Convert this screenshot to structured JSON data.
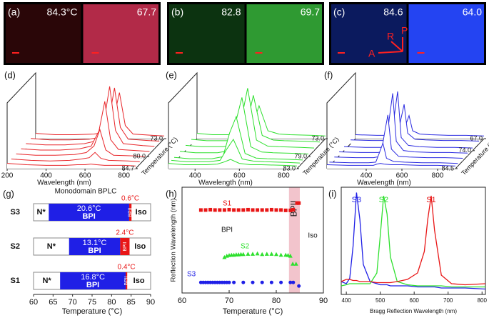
{
  "images": [
    {
      "label": "(a)",
      "left": "84.3°C",
      "right": "67.7",
      "dark": "#2a0608",
      "light": "#b22a48"
    },
    {
      "label": "(b)",
      "left": "82.8",
      "right": "69.7",
      "dark": "#0c3310",
      "light": "#2f9a32"
    },
    {
      "label": "(c)",
      "left": "84.6",
      "right": "64.0",
      "dark": "#0b1a5e",
      "light": "#2444f2",
      "axes": [
        "R",
        "P",
        "A"
      ]
    }
  ],
  "chart_data": [
    {
      "type": "waterfall",
      "label": "(d)",
      "xlabel": "Wavelength (nm)",
      "zlabel": "Temperature (°C)",
      "color": "#e8262a",
      "x": [
        200,
        300,
        400,
        500,
        560,
        600,
        630,
        660,
        700,
        800,
        860
      ],
      "xlim": [
        200,
        860
      ],
      "xticks": [
        200,
        400,
        600,
        800
      ],
      "ylim": [
        0,
        100
      ],
      "zlim": [
        84.7,
        73
      ],
      "zticks": [
        {
          "value": 73,
          "label": "73.0"
        },
        {
          "value": 80,
          "label": "80.0"
        },
        84.7
      ],
      "series": [
        {
          "z": 73,
          "values": [
            8,
            6,
            6,
            7,
            10,
            30,
            70,
            20,
            7,
            5,
            4
          ]
        },
        {
          "z": 75,
          "values": [
            8,
            6,
            6,
            7,
            10,
            35,
            85,
            25,
            7,
            5,
            4
          ]
        },
        {
          "z": 77,
          "values": [
            8,
            6,
            6,
            8,
            12,
            40,
            95,
            28,
            8,
            5,
            4
          ]
        },
        {
          "z": 79,
          "values": [
            8,
            6,
            6,
            8,
            12,
            35,
            80,
            22,
            7,
            5,
            4
          ]
        },
        {
          "z": 81,
          "values": [
            8,
            6,
            6,
            7,
            10,
            20,
            45,
            14,
            6,
            5,
            4
          ]
        },
        {
          "z": 83,
          "values": [
            8,
            6,
            5,
            6,
            8,
            10,
            18,
            9,
            6,
            5,
            4
          ]
        },
        {
          "z": 84.7,
          "values": [
            8,
            6,
            5,
            5,
            6,
            6,
            7,
            6,
            5,
            5,
            4
          ]
        }
      ]
    },
    {
      "type": "waterfall",
      "label": "(e)",
      "xlabel": "Wavelength (nm)",
      "zlabel": "Temperature (°C)",
      "color": "#2ee02e",
      "x": [
        280,
        350,
        400,
        450,
        500,
        530,
        560,
        600,
        650,
        700,
        800,
        860
      ],
      "xlim": [
        280,
        860
      ],
      "xticks": [
        400,
        600,
        800
      ],
      "ylim": [
        0,
        100
      ],
      "zlim": [
        83,
        73
      ],
      "zticks": [
        {
          "value": 73,
          "label": "73.0"
        },
        {
          "value": 79,
          "label": "79.0"
        },
        {
          "value": 83,
          "label": "83.0"
        }
      ],
      "series": [
        {
          "z": 73,
          "values": [
            8,
            6,
            6,
            6,
            8,
            20,
            50,
            12,
            7,
            6,
            5,
            4
          ]
        },
        {
          "z": 75,
          "values": [
            8,
            6,
            6,
            6,
            8,
            30,
            75,
            14,
            7,
            6,
            5,
            4
          ]
        },
        {
          "z": 77,
          "values": [
            8,
            6,
            6,
            6,
            9,
            45,
            95,
            16,
            7,
            6,
            5,
            4
          ]
        },
        {
          "z": 79,
          "values": [
            8,
            6,
            6,
            6,
            9,
            50,
            90,
            15,
            7,
            6,
            5,
            4
          ]
        },
        {
          "z": 81,
          "values": [
            8,
            6,
            6,
            6,
            9,
            45,
            70,
            14,
            7,
            6,
            5,
            4
          ]
        },
        {
          "z": 82,
          "values": [
            8,
            6,
            6,
            6,
            8,
            25,
            40,
            10,
            7,
            6,
            5,
            4
          ]
        },
        {
          "z": 83,
          "values": [
            8,
            6,
            6,
            6,
            7,
            10,
            14,
            8,
            6,
            6,
            5,
            4
          ]
        }
      ]
    },
    {
      "type": "waterfall",
      "label": "(f)",
      "xlabel": "Wavelength (nm)",
      "zlabel": "Temperature (°C)",
      "color": "#2a2ae0",
      "x": [
        180,
        300,
        400,
        440,
        460,
        480,
        500,
        540,
        600,
        700,
        800,
        900
      ],
      "xlim": [
        180,
        900
      ],
      "xticks": [
        400,
        600,
        800
      ],
      "ylim": [
        0,
        100
      ],
      "zlim": [
        84.5,
        67
      ],
      "zticks": [
        {
          "value": 67,
          "label": "67.0"
        },
        {
          "value": 74,
          "label": "74.0"
        },
        84.5
      ],
      "series": [
        {
          "z": 67,
          "values": [
            6,
            5,
            5,
            6,
            20,
            35,
            12,
            7,
            6,
            5,
            5,
            4
          ]
        },
        {
          "z": 70,
          "values": [
            6,
            5,
            5,
            7,
            35,
            60,
            16,
            7,
            6,
            5,
            5,
            4
          ]
        },
        {
          "z": 74,
          "values": [
            6,
            5,
            5,
            8,
            50,
            90,
            20,
            8,
            6,
            5,
            5,
            4
          ]
        },
        {
          "z": 77,
          "values": [
            6,
            5,
            5,
            8,
            55,
            95,
            22,
            8,
            6,
            5,
            5,
            4
          ]
        },
        {
          "z": 80,
          "values": [
            6,
            5,
            5,
            7,
            40,
            70,
            18,
            7,
            6,
            5,
            5,
            4
          ]
        },
        {
          "z": 83,
          "values": [
            6,
            5,
            5,
            6,
            20,
            35,
            12,
            7,
            6,
            5,
            5,
            4
          ]
        },
        {
          "z": 84.5,
          "values": [
            6,
            5,
            5,
            5,
            7,
            8,
            7,
            6,
            6,
            5,
            5,
            4
          ]
        }
      ]
    },
    {
      "type": "phase",
      "label": "(g)",
      "title": "Monodomain BPLC",
      "xlabel": "Temperature (°C)",
      "xlim": [
        60,
        90
      ],
      "xticks": [
        60,
        65,
        70,
        75,
        80,
        85,
        90
      ],
      "categories": [
        "S3",
        "S2",
        "S1"
      ],
      "regions": [
        "N*",
        "Iso"
      ],
      "starts": [
        63.9,
        69.1,
        66.8
      ],
      "series": [
        {
          "name": "BPI",
          "color": "#1f1fe6",
          "values": [
            20.6,
            13.1,
            16.8
          ],
          "value_labels": [
            "20.6°C",
            "13.1°C",
            "16.8°C"
          ]
        },
        {
          "name": "BPII",
          "color": "#e81616",
          "values": [
            0.6,
            2.4,
            0.4
          ],
          "value_labels": [
            "0.6°C",
            "2.4°C",
            "0.4°C"
          ]
        }
      ]
    },
    {
      "type": "scatter",
      "label": "(h)",
      "xlabel": "Temperature (°C)",
      "ylabel": "Reflection Wavelength (nm)",
      "xlim": [
        60,
        90
      ],
      "xticks": [
        60,
        70,
        80,
        90
      ],
      "ylim": [
        400,
        720
      ],
      "region": {
        "xrange": [
          82.7,
          85
        ],
        "label": "BPII",
        "color": "#f2c4cc"
      },
      "annotations": [
        "BPI",
        "Iso"
      ],
      "series": [
        {
          "name": "S1",
          "color": "#e81616",
          "marker": "square",
          "x": [
            64,
            65,
            66,
            67,
            68,
            69,
            70,
            71,
            72,
            73,
            74,
            75,
            76,
            77,
            78,
            79,
            80,
            81,
            82,
            83,
            83.6,
            84.4,
            84.8
          ],
          "values": [
            651,
            651,
            652,
            651,
            651,
            651,
            652,
            651,
            651,
            651,
            652,
            651,
            651,
            651,
            651,
            652,
            651,
            651,
            650,
            650,
            652,
            672,
            672
          ]
        },
        {
          "name": "S2",
          "color": "#2ee02e",
          "marker": "triangle",
          "x": [
            69,
            69.5,
            70,
            70.5,
            71,
            71.5,
            72,
            72.5,
            73,
            74,
            75,
            76,
            77,
            78,
            79,
            80,
            81,
            82,
            82.5,
            83,
            83.5,
            84.2
          ],
          "values": [
            508,
            512,
            514,
            515,
            515,
            516,
            516,
            517,
            517,
            518,
            518,
            519,
            517,
            518,
            518,
            517,
            515,
            515,
            514,
            512,
            488,
            488
          ]
        },
        {
          "name": "S3",
          "color": "#1f1fe6",
          "marker": "circle",
          "x": [
            64,
            64.5,
            65,
            65.5,
            66,
            66.5,
            67,
            67.5,
            68,
            68.5,
            69,
            69.5,
            70,
            71,
            73,
            75,
            77,
            79,
            81,
            83,
            83.6,
            84.8
          ],
          "values": [
            432,
            432,
            432,
            432,
            432,
            432,
            432,
            432,
            432,
            432,
            432,
            432,
            432,
            432,
            432,
            432,
            432,
            432,
            432,
            432,
            432,
            421
          ]
        }
      ]
    },
    {
      "type": "line",
      "label": "(i)",
      "xlabel": "Bragg Reflection Wavelength (nm)",
      "x": [
        385,
        400,
        410,
        420,
        430,
        440,
        450,
        470,
        490,
        500,
        510,
        520,
        530,
        550,
        580,
        610,
        630,
        640,
        650,
        660,
        680,
        710,
        750,
        810
      ],
      "xlim": [
        385,
        810
      ],
      "xticks": [
        400,
        500,
        600,
        700,
        800
      ],
      "ylim": [
        0,
        100
      ],
      "series": [
        {
          "name": "S3",
          "color": "#1f1fe6",
          "values": [
            12,
            10,
            15,
            45,
            95,
            70,
            28,
            12,
            10,
            9,
            9,
            9,
            8,
            8,
            8,
            7,
            7,
            7,
            7,
            7,
            6,
            6,
            6,
            5
          ]
        },
        {
          "name": "S2",
          "color": "#2ee02e",
          "values": [
            8,
            9,
            10,
            10,
            10,
            10,
            10,
            10,
            20,
            55,
            92,
            75,
            35,
            12,
            9,
            8,
            8,
            8,
            8,
            8,
            8,
            7,
            7,
            7
          ]
        },
        {
          "name": "S1",
          "color": "#e81616",
          "values": [
            12,
            14,
            14,
            13,
            13,
            12,
            12,
            12,
            11,
            11,
            11,
            11,
            11,
            12,
            14,
            20,
            40,
            70,
            92,
            60,
            18,
            10,
            9,
            10
          ]
        }
      ]
    }
  ]
}
